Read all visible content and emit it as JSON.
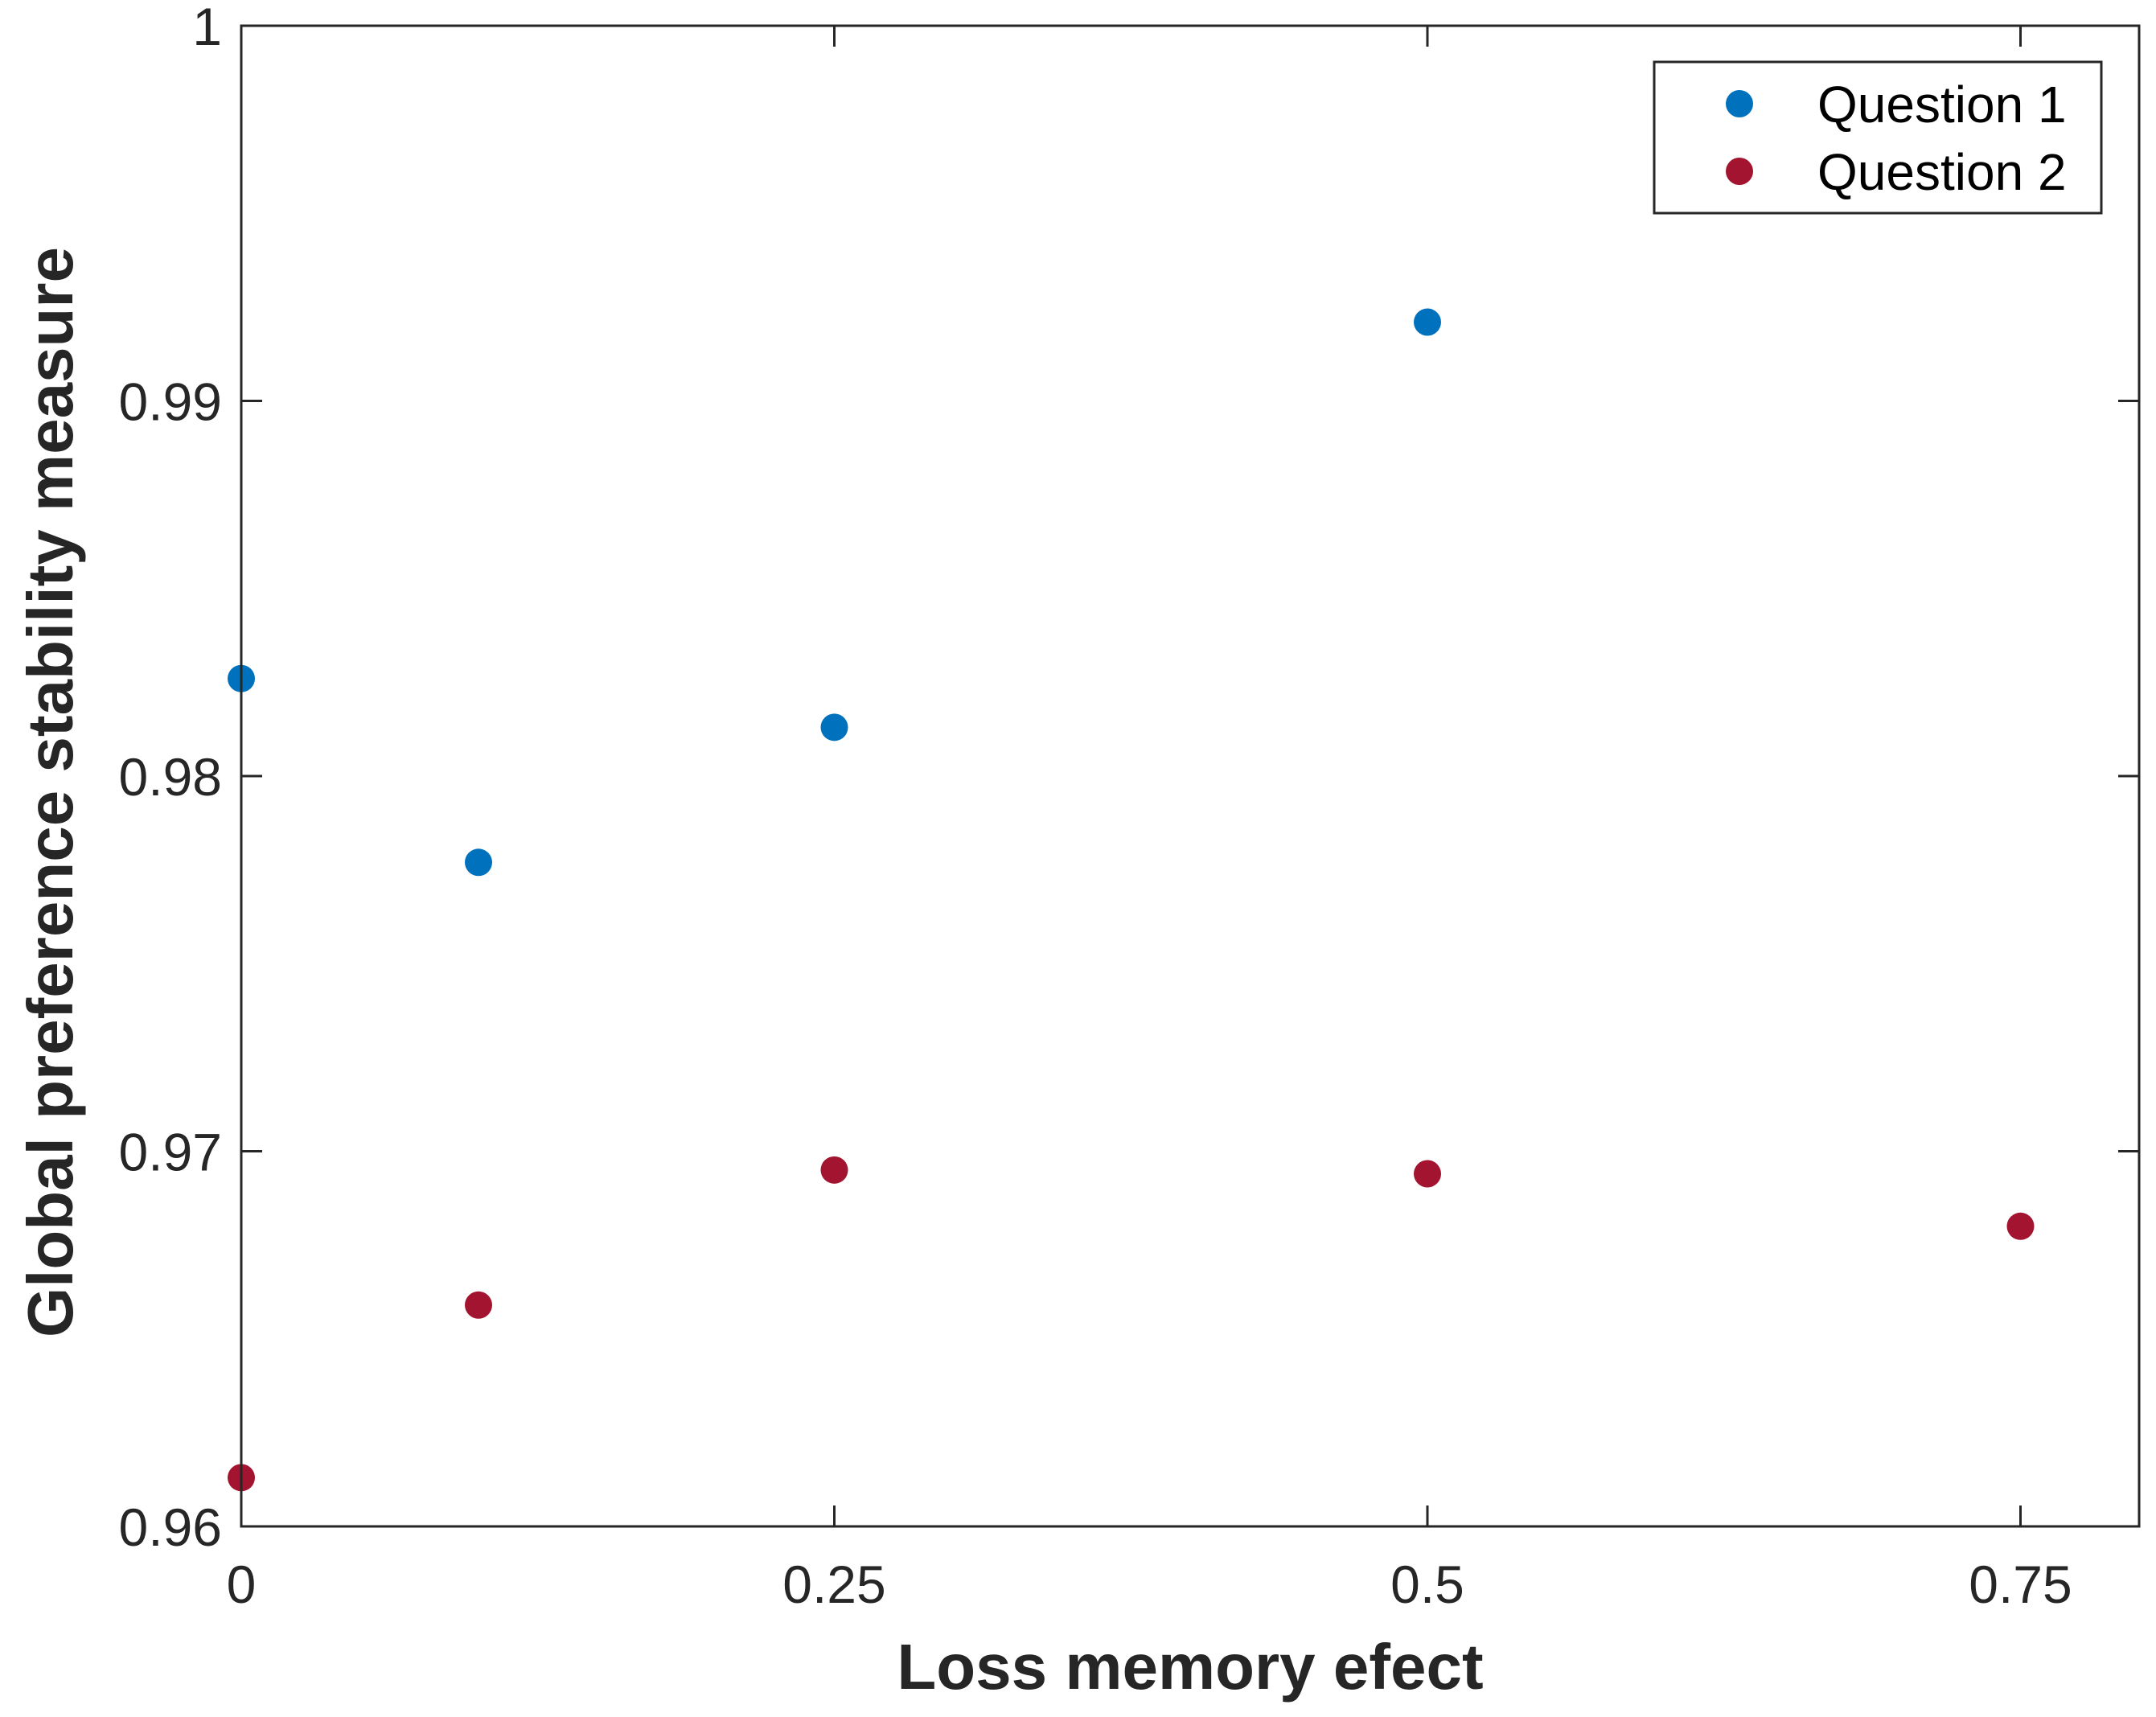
{
  "chart_data": {
    "type": "scatter",
    "title": "",
    "xlabel": "Loss memory efect",
    "ylabel": "Global preference stability measure",
    "xlim": [
      0,
      0.8
    ],
    "ylim": [
      0.96,
      1
    ],
    "xticks": [
      0,
      0.25,
      0.5,
      0.75
    ],
    "xtick_labels": [
      "0",
      "0.25",
      "0.5",
      "0.75"
    ],
    "yticks": [
      0.96,
      0.97,
      0.98,
      0.99,
      1
    ],
    "ytick_labels": [
      "0.96",
      "0.97",
      "0.98",
      "0.99",
      "1"
    ],
    "grid": false,
    "legend_position": "top-right",
    "series": [
      {
        "name": "Question 1",
        "color": "#0072BD",
        "x": [
          0,
          0.1,
          0.25,
          0.5
        ],
        "y": [
          0.9826,
          0.9777,
          0.9813,
          0.9921
        ]
      },
      {
        "name": "Question 2",
        "color": "#A2142F",
        "x": [
          0,
          0.1,
          0.25,
          0.5,
          0.75
        ],
        "y": [
          0.9613,
          0.9659,
          0.9695,
          0.9694,
          0.968
        ]
      }
    ]
  }
}
